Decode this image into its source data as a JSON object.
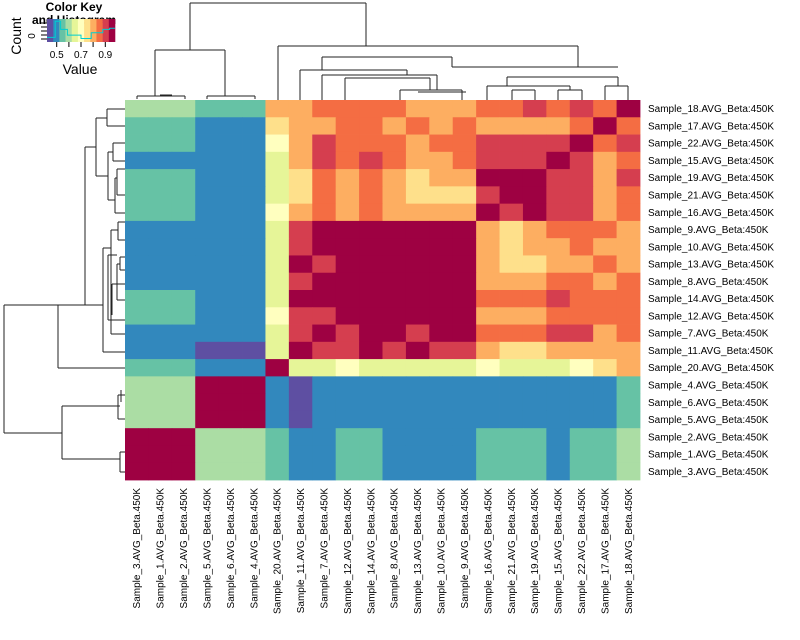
{
  "chart_data": {
    "type": "heatmap",
    "title": "",
    "row_labels": [
      "Sample_18.AVG_Beta:450K",
      "Sample_17.AVG_Beta:450K",
      "Sample_22.AVG_Beta:450K",
      "Sample_15.AVG_Beta:450K",
      "Sample_19.AVG_Beta:450K",
      "Sample_21.AVG_Beta:450K",
      "Sample_16.AVG_Beta:450K",
      "Sample_9.AVG_Beta:450K",
      "Sample_10.AVG_Beta:450K",
      "Sample_13.AVG_Beta:450K",
      "Sample_8.AVG_Beta:450K",
      "Sample_14.AVG_Beta:450K",
      "Sample_12.AVG_Beta:450K",
      "Sample_7.AVG_Beta:450K",
      "Sample_11.AVG_Beta:450K",
      "Sample_20.AVG_Beta:450K",
      "Sample_4.AVG_Beta:450K",
      "Sample_6.AVG_Beta:450K",
      "Sample_5.AVG_Beta:450K",
      "Sample_2.AVG_Beta:450K",
      "Sample_1.AVG_Beta:450K",
      "Sample_3.AVG_Beta:450K"
    ],
    "col_labels": [
      "Sample_3.AVG_Beta.450K",
      "Sample_1.AVG_Beta.450K",
      "Sample_2.AVG_Beta.450K",
      "Sample_5.AVG_Beta.450K",
      "Sample_6.AVG_Beta.450K",
      "Sample_4.AVG_Beta.450K",
      "Sample_20.AVG_Beta.450K",
      "Sample_11.AVG_Beta.450K",
      "Sample_7.AVG_Beta.450K",
      "Sample_12.AVG_Beta.450K",
      "Sample_14.AVG_Beta.450K",
      "Sample_8.AVG_Beta.450K",
      "Sample_13.AVG_Beta.450K",
      "Sample_10.AVG_Beta.450K",
      "Sample_9.AVG_Beta.450K",
      "Sample_16.AVG_Beta.450K",
      "Sample_21.AVG_Beta.450K",
      "Sample_19.AVG_Beta.450K",
      "Sample_15.AVG_Beta.450K",
      "Sample_22.AVG_Beta.450K",
      "Sample_17.AVG_Beta.450K",
      "Sample_18.AVG_Beta.450K"
    ],
    "color_levels": [
      0.45,
      0.5,
      0.55,
      0.6,
      0.65,
      0.7,
      0.75,
      0.8,
      0.85,
      0.9,
      0.95
    ],
    "palette": [
      "#5E4FA2",
      "#3288BD",
      "#66C2A5",
      "#ABDDA4",
      "#E6F598",
      "#FFFFBF",
      "#FEE08B",
      "#FDAE61",
      "#F46D43",
      "#D53E4F",
      "#9E0142"
    ],
    "matrix_level_index": [
      [
        3,
        3,
        3,
        2,
        2,
        2,
        7,
        7,
        8,
        8,
        8,
        8,
        7,
        7,
        7,
        8,
        8,
        9,
        8,
        9,
        8,
        10
      ],
      [
        2,
        2,
        2,
        1,
        1,
        1,
        6,
        7,
        7,
        8,
        8,
        7,
        8,
        7,
        8,
        7,
        7,
        7,
        7,
        8,
        10,
        8
      ],
      [
        2,
        2,
        2,
        1,
        1,
        1,
        5,
        7,
        9,
        8,
        8,
        8,
        7,
        8,
        8,
        9,
        9,
        9,
        9,
        10,
        8,
        9
      ],
      [
        1,
        1,
        1,
        1,
        1,
        1,
        4,
        7,
        9,
        8,
        9,
        8,
        7,
        7,
        8,
        9,
        9,
        9,
        10,
        9,
        7,
        8
      ],
      [
        2,
        2,
        2,
        1,
        1,
        1,
        4,
        6,
        8,
        7,
        8,
        7,
        6,
        7,
        7,
        10,
        10,
        10,
        9,
        9,
        7,
        9
      ],
      [
        2,
        2,
        2,
        1,
        1,
        1,
        4,
        6,
        8,
        7,
        8,
        7,
        6,
        6,
        6,
        9,
        10,
        10,
        9,
        9,
        7,
        8
      ],
      [
        2,
        2,
        2,
        1,
        1,
        1,
        5,
        7,
        8,
        7,
        8,
        7,
        7,
        7,
        7,
        10,
        9,
        10,
        9,
        9,
        7,
        8
      ],
      [
        1,
        1,
        1,
        1,
        1,
        1,
        4,
        9,
        10,
        10,
        10,
        10,
        10,
        10,
        10,
        7,
        6,
        7,
        8,
        8,
        8,
        7
      ],
      [
        1,
        1,
        1,
        1,
        1,
        1,
        4,
        9,
        10,
        10,
        10,
        10,
        10,
        10,
        10,
        7,
        6,
        7,
        7,
        8,
        7,
        7
      ],
      [
        1,
        1,
        1,
        1,
        1,
        1,
        4,
        10,
        9,
        10,
        10,
        10,
        10,
        10,
        10,
        7,
        6,
        6,
        7,
        7,
        8,
        7
      ],
      [
        1,
        1,
        1,
        1,
        1,
        1,
        4,
        9,
        10,
        10,
        10,
        10,
        10,
        10,
        10,
        7,
        7,
        7,
        8,
        8,
        7,
        8
      ],
      [
        2,
        2,
        2,
        1,
        1,
        1,
        4,
        10,
        10,
        10,
        10,
        10,
        10,
        10,
        10,
        8,
        8,
        8,
        9,
        8,
        8,
        8
      ],
      [
        2,
        2,
        2,
        1,
        1,
        1,
        5,
        9,
        9,
        10,
        10,
        10,
        10,
        10,
        10,
        7,
        7,
        7,
        8,
        8,
        8,
        8
      ],
      [
        1,
        1,
        1,
        1,
        1,
        1,
        4,
        9,
        10,
        9,
        10,
        10,
        9,
        10,
        10,
        8,
        8,
        8,
        9,
        9,
        7,
        8
      ],
      [
        1,
        1,
        1,
        0,
        0,
        0,
        4,
        10,
        9,
        9,
        10,
        9,
        10,
        9,
        9,
        7,
        6,
        6,
        7,
        7,
        7,
        7
      ],
      [
        2,
        2,
        2,
        1,
        1,
        1,
        10,
        4,
        4,
        5,
        4,
        4,
        4,
        4,
        4,
        5,
        4,
        4,
        4,
        5,
        6,
        7
      ],
      [
        3,
        3,
        3,
        10,
        10,
        10,
        1,
        0,
        1,
        1,
        1,
        1,
        1,
        1,
        1,
        1,
        1,
        1,
        1,
        1,
        1,
        2
      ],
      [
        3,
        3,
        3,
        10,
        10,
        10,
        1,
        0,
        1,
        1,
        1,
        1,
        1,
        1,
        1,
        1,
        1,
        1,
        1,
        1,
        1,
        2
      ],
      [
        3,
        3,
        3,
        10,
        10,
        10,
        1,
        0,
        1,
        1,
        1,
        1,
        1,
        1,
        1,
        1,
        1,
        1,
        1,
        1,
        1,
        2
      ],
      [
        10,
        10,
        10,
        3,
        3,
        3,
        2,
        1,
        1,
        2,
        2,
        1,
        1,
        1,
        1,
        2,
        2,
        2,
        1,
        2,
        2,
        3
      ],
      [
        10,
        10,
        10,
        3,
        3,
        3,
        2,
        1,
        1,
        2,
        2,
        1,
        1,
        1,
        1,
        2,
        2,
        2,
        1,
        2,
        2,
        3
      ],
      [
        10,
        10,
        10,
        3,
        3,
        3,
        2,
        1,
        1,
        2,
        2,
        1,
        1,
        1,
        1,
        2,
        2,
        2,
        1,
        2,
        2,
        3
      ]
    ],
    "color_key": {
      "title_line1": "Color Key",
      "title_line2": "and Histogram",
      "ylabel": "Count",
      "ytick": "0",
      "xlabel": "Value",
      "xticks": [
        "0.5",
        "0.7",
        "0.9"
      ],
      "xtick_values": [
        0.5,
        0.7,
        0.9
      ],
      "range": [
        0.42,
        0.98
      ],
      "histogram_color": "#00CED1"
    },
    "dendrograms": {
      "row": true,
      "column": true
    }
  }
}
